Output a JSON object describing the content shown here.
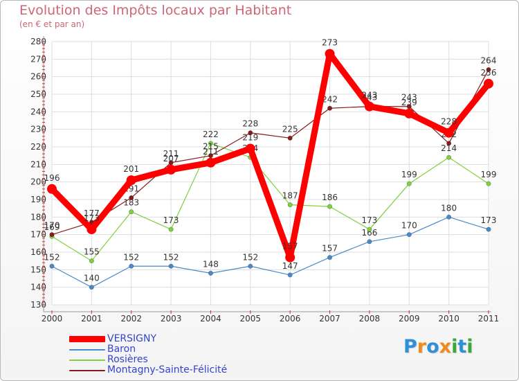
{
  "title": "Evolution des Impôts locaux par Habitant",
  "subtitle": "(en € et par an)",
  "chart_data": {
    "type": "line",
    "title": "Evolution des Impôts locaux par Habitant",
    "subtitle": "(en € et par an)",
    "xlabel": "",
    "ylabel": "",
    "ylim": [
      130,
      280
    ],
    "ytick_step": 10,
    "grid": true,
    "x": [
      "2000",
      "2001",
      "2002",
      "2003",
      "2004",
      "2005",
      "2006",
      "2007",
      "2008",
      "2009",
      "2010",
      "2011"
    ],
    "series": [
      {
        "name": "VERSIGNY",
        "color": "#ff0000",
        "emphasis": true,
        "values": [
          196,
          173,
          201,
          207,
          211,
          219,
          157,
          273,
          243,
          239,
          228,
          256
        ]
      },
      {
        "name": "Baron",
        "color": "#4a89c8",
        "emphasis": false,
        "values": [
          152,
          140,
          152,
          152,
          148,
          152,
          147,
          157,
          166,
          170,
          180,
          173
        ]
      },
      {
        "name": "Rosières",
        "color": "#7fcf3f",
        "emphasis": false,
        "values": [
          169,
          155,
          183,
          173,
          222,
          214,
          187,
          186,
          173,
          199,
          214,
          199
        ]
      },
      {
        "name": "Montagny-Sainte-Félicité",
        "color": "#8b1a1a",
        "emphasis": false,
        "values": [
          170,
          177,
          191,
          211,
          215,
          228,
          225,
          242,
          243,
          243,
          222,
          264
        ]
      }
    ],
    "legend_position": "bottom-left"
  },
  "logo": {
    "text": "Proxiti",
    "letters": [
      {
        "ch": "P",
        "color": "#2f8fd8"
      },
      {
        "ch": "r",
        "color": "#f08a1c"
      },
      {
        "ch": "o",
        "color": "#2f8fd8"
      },
      {
        "ch": "x",
        "color": "#f08a1c"
      },
      {
        "ch": "i",
        "color": "#3aa83a"
      },
      {
        "ch": "t",
        "color": "#2f8fd8"
      },
      {
        "ch": "i",
        "color": "#3aa83a"
      }
    ]
  }
}
